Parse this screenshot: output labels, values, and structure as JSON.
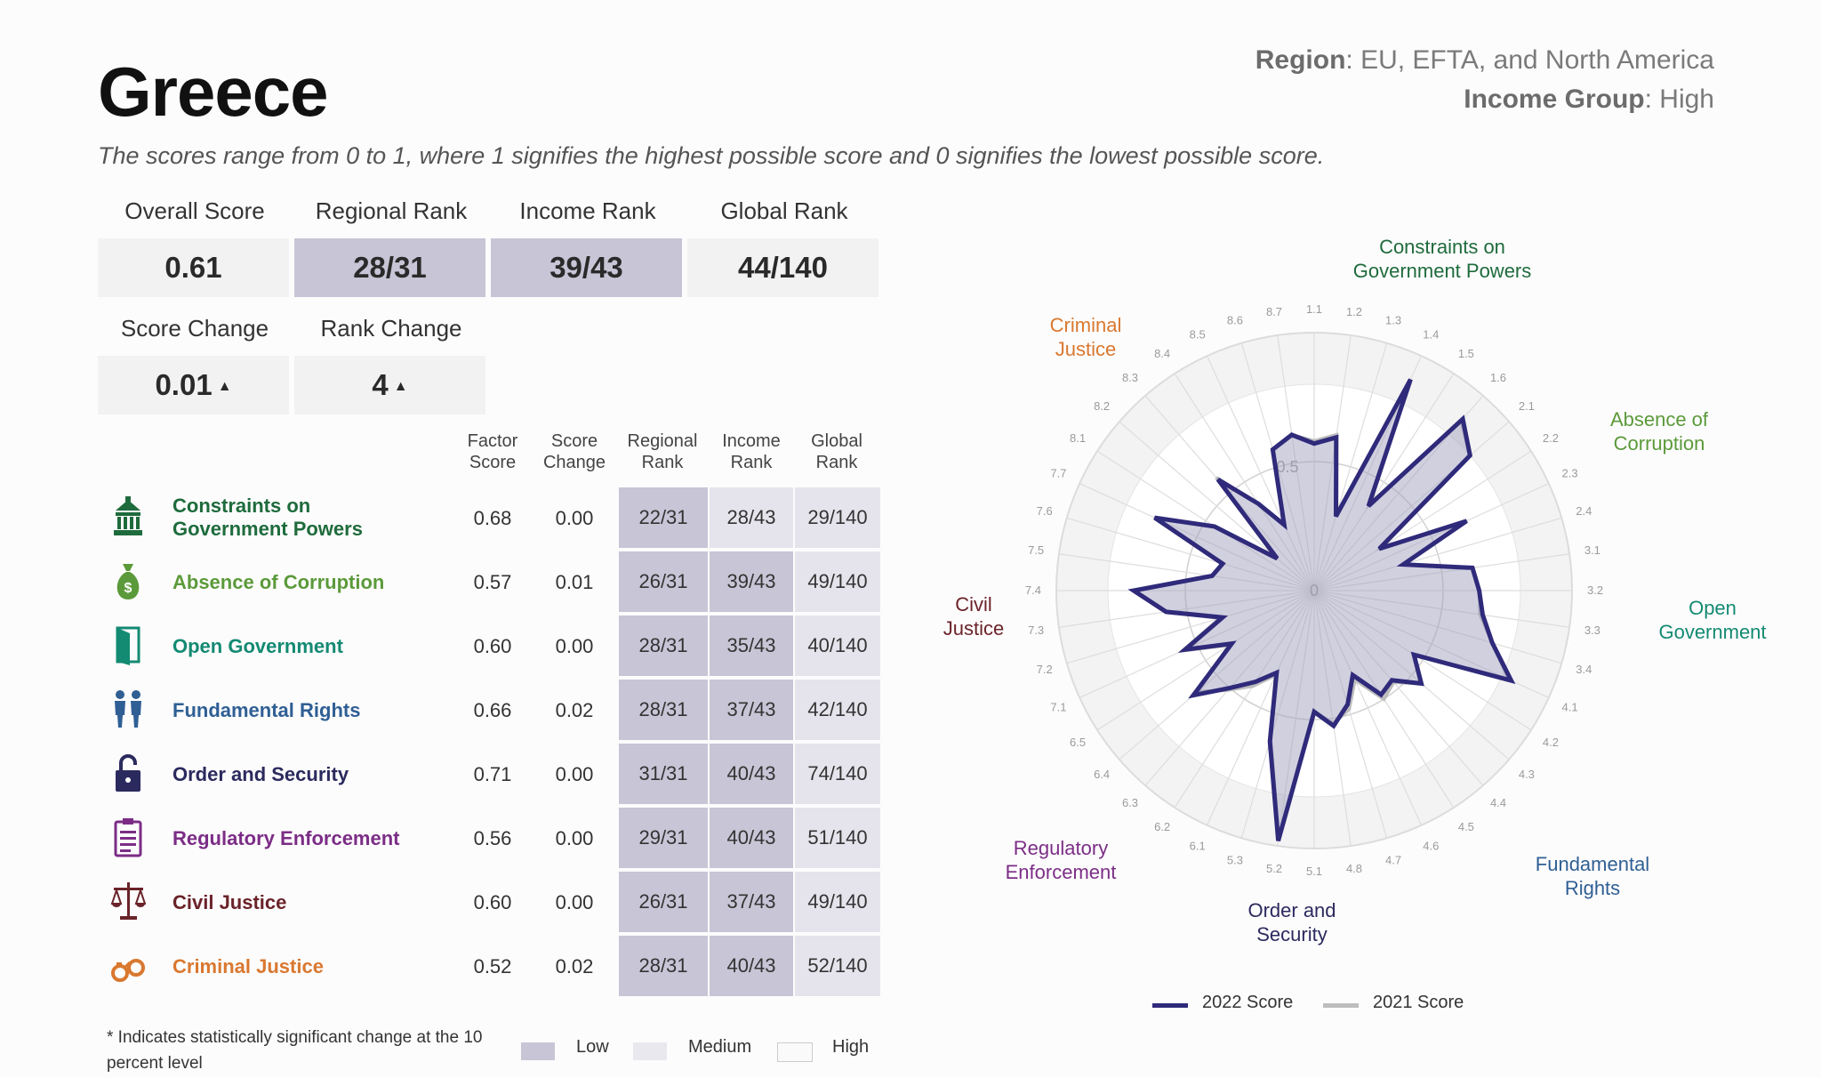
{
  "country": "Greece",
  "region_line": {
    "label": "Region",
    "value": "EU, EFTA, and North America"
  },
  "income_line": {
    "label": "Income Group",
    "value": "High"
  },
  "subtitle": "The scores range from 0 to 1, where 1 signifies the highest possible score and 0 signifies the lowest possible score.",
  "summary": {
    "overall_score": {
      "label": "Overall Score",
      "value": "0.61",
      "level": "medium"
    },
    "regional_rank": {
      "label": "Regional Rank",
      "value": "28/31",
      "level": "low"
    },
    "income_rank": {
      "label": "Income Rank",
      "value": "39/43",
      "level": "low"
    },
    "global_rank": {
      "label": "Global Rank",
      "value": "44/140",
      "level": "medium"
    },
    "score_change": {
      "label": "Score Change",
      "value": "0.01",
      "arrow": "▲"
    },
    "rank_change": {
      "label": "Rank Change",
      "value": "4",
      "arrow": "▲"
    }
  },
  "table_headers": {
    "factor_score": "Factor Score",
    "score_change": "Score Change",
    "regional_rank": "Regional Rank",
    "income_rank": "Income Rank",
    "global_rank": "Global Rank"
  },
  "factors": [
    {
      "name": "Constraints on Government Powers",
      "color": "#1e6b3c",
      "icon": "government-building-icon",
      "score": "0.68",
      "change": "0.00",
      "regional": "22/31",
      "income": "28/43",
      "global": "29/140",
      "levels": [
        "low",
        "medium",
        "medium"
      ]
    },
    {
      "name": "Absence of Corruption",
      "color": "#5b9a3a",
      "icon": "money-bag-icon",
      "score": "0.57",
      "change": "0.01",
      "regional": "26/31",
      "income": "39/43",
      "global": "49/140",
      "levels": [
        "low",
        "low",
        "medium"
      ]
    },
    {
      "name": "Open Government",
      "color": "#138a72",
      "icon": "open-door-icon",
      "score": "0.60",
      "change": "0.00",
      "regional": "28/31",
      "income": "35/43",
      "global": "40/140",
      "levels": [
        "low",
        "low",
        "medium"
      ]
    },
    {
      "name": "Fundamental Rights",
      "color": "#2f5f94",
      "icon": "people-icon",
      "score": "0.66",
      "change": "0.02",
      "regional": "28/31",
      "income": "37/43",
      "global": "42/140",
      "levels": [
        "low",
        "low",
        "medium"
      ]
    },
    {
      "name": "Order and Security",
      "color": "#2b2a5e",
      "icon": "padlock-icon",
      "score": "0.71",
      "change": "0.00",
      "regional": "31/31",
      "income": "40/43",
      "global": "74/140",
      "levels": [
        "low",
        "low",
        "medium"
      ]
    },
    {
      "name": "Regulatory Enforcement",
      "color": "#7b2d86",
      "icon": "clipboard-icon",
      "score": "0.56",
      "change": "0.00",
      "regional": "29/31",
      "income": "40/43",
      "global": "51/140",
      "levels": [
        "low",
        "low",
        "medium"
      ]
    },
    {
      "name": "Civil Justice",
      "color": "#6a2329",
      "icon": "scales-icon",
      "score": "0.60",
      "change": "0.00",
      "regional": "26/31",
      "income": "37/43",
      "global": "49/140",
      "levels": [
        "low",
        "low",
        "medium"
      ]
    },
    {
      "name": "Criminal Justice",
      "color": "#d9782f",
      "icon": "handcuffs-icon",
      "score": "0.52",
      "change": "0.02",
      "regional": "28/31",
      "income": "40/43",
      "global": "52/140",
      "levels": [
        "low",
        "low",
        "medium"
      ]
    }
  ],
  "footnote": "* Indicates statistically significant change at the 10 percent level",
  "level_legend": [
    {
      "label": "Low",
      "color": "#c7c5d6"
    },
    {
      "label": "Medium",
      "color": "#e9e8ee"
    },
    {
      "label": "High",
      "color": "#fafafa"
    }
  ],
  "chart_data": {
    "type": "radar",
    "center_label": "0",
    "ring_label": "0.5",
    "rlim": [
      0,
      1
    ],
    "spokes": [
      "1.1",
      "1.2",
      "1.3",
      "1.4",
      "1.5",
      "1.6",
      "2.1",
      "2.2",
      "2.3",
      "2.4",
      "3.1",
      "3.2",
      "3.3",
      "3.4",
      "4.1",
      "4.2",
      "4.3",
      "4.4",
      "4.5",
      "4.6",
      "4.7",
      "4.8",
      "5.1",
      "5.2",
      "5.3",
      "6.1",
      "6.2",
      "6.3",
      "6.4",
      "6.5",
      "7.1",
      "7.2",
      "7.3",
      "7.4",
      "7.5",
      "7.6",
      "7.7",
      "8.1",
      "8.2",
      "8.3",
      "8.4",
      "8.5",
      "8.6",
      "8.7"
    ],
    "factor_groups": [
      {
        "label": "Constraints on Government Powers",
        "color": "#1e6b3c",
        "spokes": 6
      },
      {
        "label": "Absence of Corruption",
        "color": "#5b9a3a",
        "spokes": 4
      },
      {
        "label": "Open Government",
        "color": "#138a72",
        "spokes": 4
      },
      {
        "label": "Fundamental Rights",
        "color": "#2f5f94",
        "spokes": 8
      },
      {
        "label": "Order and Security",
        "color": "#2b2a5e",
        "spokes": 3
      },
      {
        "label": "Regulatory Enforcement",
        "color": "#7b2d86",
        "spokes": 5
      },
      {
        "label": "Civil Justice",
        "color": "#6a2329",
        "spokes": 7
      },
      {
        "label": "Criminal Justice",
        "color": "#d9782f",
        "spokes": 7
      }
    ],
    "series": [
      {
        "name": "2022 Score",
        "color": "#2f2a7a",
        "values": [
          0.57,
          0.6,
          0.3,
          0.9,
          0.39,
          0.88,
          0.8,
          0.3,
          0.65,
          0.36,
          0.62,
          0.64,
          0.66,
          0.72,
          0.84,
          0.46,
          0.55,
          0.46,
          0.48,
          0.36,
          0.46,
          0.53,
          0.47,
          0.98,
          0.61,
          0.35,
          0.42,
          0.5,
          0.62,
          0.38,
          0.55,
          0.37,
          0.58,
          0.7,
          0.4,
          0.37,
          0.68,
          0.46,
          0.19,
          0.57,
          0.4,
          0.28,
          0.57,
          0.61
        ]
      },
      {
        "name": "2021 Score",
        "color": "#bdbdbd",
        "values": [
          0.58,
          0.61,
          0.31,
          0.89,
          0.4,
          0.87,
          0.8,
          0.31,
          0.64,
          0.36,
          0.62,
          0.64,
          0.65,
          0.72,
          0.83,
          0.46,
          0.55,
          0.47,
          0.5,
          0.38,
          0.48,
          0.52,
          0.47,
          0.97,
          0.6,
          0.36,
          0.44,
          0.51,
          0.6,
          0.39,
          0.56,
          0.38,
          0.58,
          0.7,
          0.4,
          0.37,
          0.68,
          0.46,
          0.2,
          0.58,
          0.4,
          0.28,
          0.57,
          0.61
        ]
      }
    ]
  }
}
